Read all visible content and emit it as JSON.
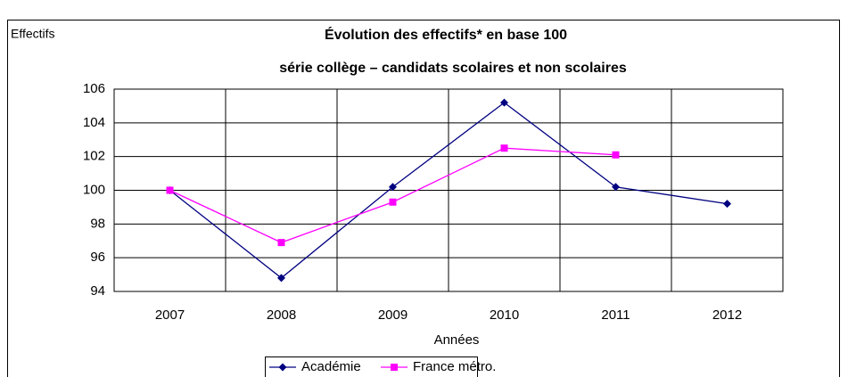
{
  "chart_data": {
    "type": "line",
    "title": "Évolution des effectifs* en base 100",
    "subtitle": "série collège – candidats scolaires et non scolaires",
    "y_label": "Effectifs",
    "x_label": "Années",
    "categories": [
      "2007",
      "2008",
      "2009",
      "2010",
      "2011",
      "2012"
    ],
    "series": [
      {
        "name": "Académie",
        "color": "#000080",
        "marker": "diamond",
        "values": [
          100,
          94.8,
          100.2,
          105.2,
          100.2,
          99.2
        ]
      },
      {
        "name": "France métro.",
        "color": "#ff00ff",
        "marker": "square",
        "values": [
          100,
          96.9,
          99.3,
          102.5,
          102.1,
          null
        ]
      }
    ],
    "ylim": [
      94,
      106
    ],
    "yticks": [
      94,
      96,
      98,
      100,
      102,
      104,
      106
    ],
    "grid": true,
    "legend": "bottom"
  }
}
